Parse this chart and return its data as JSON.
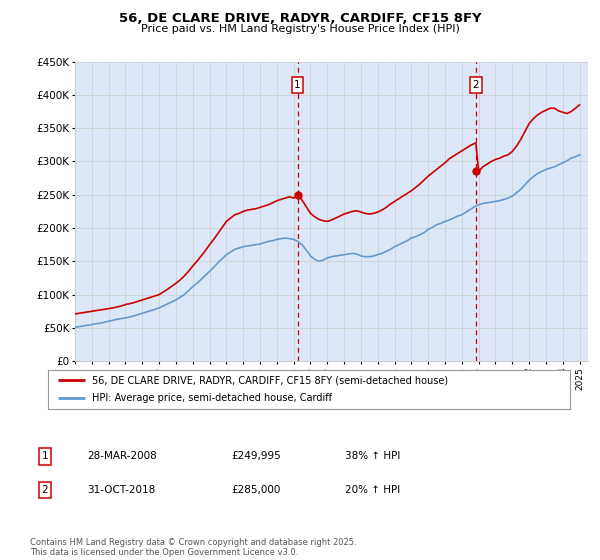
{
  "title": "56, DE CLARE DRIVE, RADYR, CARDIFF, CF15 8FY",
  "subtitle": "Price paid vs. HM Land Registry's House Price Index (HPI)",
  "legend_line1": "56, DE CLARE DRIVE, RADYR, CARDIFF, CF15 8FY (semi-detached house)",
  "legend_line2": "HPI: Average price, semi-detached house, Cardiff",
  "footer": "Contains HM Land Registry data © Crown copyright and database right 2025.\nThis data is licensed under the Open Government Licence v3.0.",
  "sale1_label": "1",
  "sale2_label": "2",
  "sale1_date": "28-MAR-2008",
  "sale1_price": "£249,995",
  "sale1_hpi": "38% ↑ HPI",
  "sale2_date": "31-OCT-2018",
  "sale2_price": "£285,000",
  "sale2_hpi": "20% ↑ HPI",
  "sale1_x": 2008.23,
  "sale1_y": 249995,
  "sale2_x": 2018.83,
  "sale2_y": 285000,
  "ylim": [
    0,
    450000
  ],
  "xlim": [
    1995,
    2025.5
  ],
  "red_color": "#cc0000",
  "blue_color": "#6699cc",
  "bg_color": "#dce8f8",
  "plot_bg": "#ffffff",
  "grid_color": "#cccccc",
  "yticks": [
    0,
    50000,
    100000,
    150000,
    200000,
    250000,
    300000,
    350000,
    400000,
    450000
  ],
  "ylabels": [
    "£0",
    "£50K",
    "£100K",
    "£150K",
    "£200K",
    "£250K",
    "£300K",
    "£350K",
    "£400K",
    "£450K"
  ],
  "hpi_x": [
    1995.0,
    1995.25,
    1995.5,
    1995.75,
    1996.0,
    1996.25,
    1996.5,
    1996.75,
    1997.0,
    1997.25,
    1997.5,
    1997.75,
    1998.0,
    1998.25,
    1998.5,
    1998.75,
    1999.0,
    1999.25,
    1999.5,
    1999.75,
    2000.0,
    2000.25,
    2000.5,
    2000.75,
    2001.0,
    2001.25,
    2001.5,
    2001.75,
    2002.0,
    2002.25,
    2002.5,
    2002.75,
    2003.0,
    2003.25,
    2003.5,
    2003.75,
    2004.0,
    2004.25,
    2004.5,
    2004.75,
    2005.0,
    2005.25,
    2005.5,
    2005.75,
    2006.0,
    2006.25,
    2006.5,
    2006.75,
    2007.0,
    2007.25,
    2007.5,
    2007.75,
    2008.0,
    2008.25,
    2008.5,
    2008.75,
    2009.0,
    2009.25,
    2009.5,
    2009.75,
    2010.0,
    2010.25,
    2010.5,
    2010.75,
    2011.0,
    2011.25,
    2011.5,
    2011.75,
    2012.0,
    2012.25,
    2012.5,
    2012.75,
    2013.0,
    2013.25,
    2013.5,
    2013.75,
    2014.0,
    2014.25,
    2014.5,
    2014.75,
    2015.0,
    2015.25,
    2015.5,
    2015.75,
    2016.0,
    2016.25,
    2016.5,
    2016.75,
    2017.0,
    2017.25,
    2017.5,
    2017.75,
    2018.0,
    2018.25,
    2018.5,
    2018.75,
    2019.0,
    2019.25,
    2019.5,
    2019.75,
    2020.0,
    2020.25,
    2020.5,
    2020.75,
    2021.0,
    2021.25,
    2021.5,
    2021.75,
    2022.0,
    2022.25,
    2022.5,
    2022.75,
    2023.0,
    2023.25,
    2023.5,
    2023.75,
    2024.0,
    2024.25,
    2024.5,
    2024.75,
    2025.0
  ],
  "hpi_y": [
    51000,
    52000,
    53000,
    54000,
    55000,
    56500,
    57000,
    58500,
    60000,
    61500,
    63000,
    64000,
    65000,
    66500,
    68000,
    70000,
    72000,
    74000,
    76000,
    78000,
    80000,
    83000,
    86000,
    89000,
    92000,
    96000,
    100000,
    106000,
    112000,
    117000,
    123000,
    129000,
    135000,
    141000,
    148000,
    154000,
    160000,
    164000,
    168000,
    170000,
    172000,
    173000,
    174000,
    175000,
    176000,
    178000,
    180000,
    181000,
    183000,
    184000,
    185000,
    184000,
    183000,
    180000,
    175000,
    167000,
    158000,
    153000,
    150000,
    152000,
    155000,
    157000,
    158000,
    159000,
    160000,
    161000,
    162000,
    161000,
    158000,
    157000,
    157000,
    158000,
    160000,
    162000,
    165000,
    168000,
    172000,
    175000,
    178000,
    181000,
    185000,
    187000,
    190000,
    193000,
    198000,
    201000,
    205000,
    207000,
    210000,
    212000,
    215000,
    218000,
    220000,
    224000,
    228000,
    232000,
    235000,
    237000,
    238000,
    239000,
    240000,
    241000,
    243000,
    245000,
    248000,
    253000,
    258000,
    265000,
    272000,
    277000,
    282000,
    285000,
    288000,
    290000,
    292000,
    295000,
    298000,
    301000,
    305000,
    307000,
    310000
  ],
  "prop_x": [
    1995.0,
    1995.25,
    1995.5,
    1995.75,
    1996.0,
    1996.25,
    1996.5,
    1996.75,
    1997.0,
    1997.25,
    1997.5,
    1997.75,
    1998.0,
    1998.25,
    1998.5,
    1998.75,
    1999.0,
    1999.25,
    1999.5,
    1999.75,
    2000.0,
    2000.25,
    2000.5,
    2000.75,
    2001.0,
    2001.25,
    2001.5,
    2001.75,
    2002.0,
    2002.25,
    2002.5,
    2002.75,
    2003.0,
    2003.25,
    2003.5,
    2003.75,
    2004.0,
    2004.25,
    2004.5,
    2004.75,
    2005.0,
    2005.25,
    2005.5,
    2005.75,
    2006.0,
    2006.25,
    2006.5,
    2006.75,
    2007.0,
    2007.25,
    2007.5,
    2007.75,
    2008.0,
    2008.23,
    2008.5,
    2008.75,
    2009.0,
    2009.25,
    2009.5,
    2009.75,
    2010.0,
    2010.25,
    2010.5,
    2010.75,
    2011.0,
    2011.25,
    2011.5,
    2011.75,
    2012.0,
    2012.25,
    2012.5,
    2012.75,
    2013.0,
    2013.25,
    2013.5,
    2013.75,
    2014.0,
    2014.25,
    2014.5,
    2014.75,
    2015.0,
    2015.25,
    2015.5,
    2015.75,
    2016.0,
    2016.25,
    2016.5,
    2016.75,
    2017.0,
    2017.25,
    2017.5,
    2017.75,
    2018.0,
    2018.25,
    2018.5,
    2018.83,
    2019.0,
    2019.25,
    2019.5,
    2019.75,
    2020.0,
    2020.25,
    2020.5,
    2020.75,
    2021.0,
    2021.25,
    2021.5,
    2021.75,
    2022.0,
    2022.25,
    2022.5,
    2022.75,
    2023.0,
    2023.25,
    2023.5,
    2023.75,
    2024.0,
    2024.25,
    2024.5,
    2024.75,
    2025.0
  ],
  "prop_y": [
    71000,
    72000,
    73000,
    74000,
    75000,
    76000,
    77000,
    78000,
    79000,
    80000,
    81500,
    83000,
    85000,
    86500,
    88000,
    90000,
    92000,
    94000,
    96000,
    98000,
    100000,
    104000,
    108000,
    112500,
    117000,
    122000,
    128000,
    135000,
    143000,
    150000,
    158000,
    166000,
    175000,
    183000,
    192000,
    201000,
    210000,
    215000,
    220000,
    222000,
    225000,
    227000,
    228000,
    229000,
    231000,
    233000,
    235000,
    238000,
    241000,
    243000,
    245000,
    247000,
    245000,
    249995,
    242000,
    232000,
    222000,
    217000,
    213000,
    211000,
    210000,
    212000,
    215000,
    218000,
    221000,
    223000,
    225000,
    226000,
    224000,
    222000,
    221000,
    222000,
    224000,
    227000,
    231000,
    236000,
    240000,
    244000,
    248000,
    252000,
    256000,
    261000,
    266000,
    272000,
    278000,
    283000,
    288000,
    293000,
    298000,
    304000,
    308000,
    312000,
    316000,
    320000,
    324000,
    328000,
    285000,
    292000,
    296000,
    300000,
    303000,
    305000,
    308000,
    310000,
    315000,
    323000,
    333000,
    345000,
    357000,
    364000,
    370000,
    374000,
    377000,
    380000,
    380000,
    376000,
    374000,
    372000,
    375000,
    380000,
    385000
  ]
}
